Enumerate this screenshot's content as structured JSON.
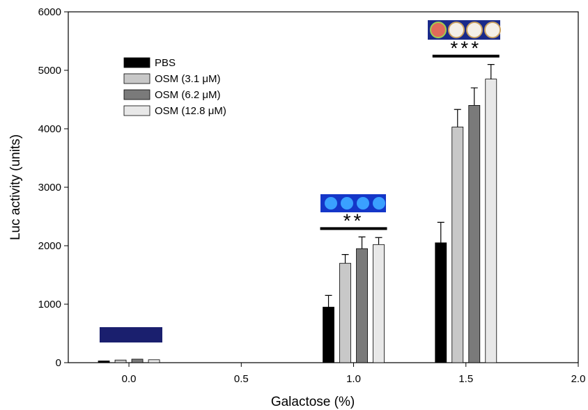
{
  "chart_data": {
    "type": "bar",
    "x_label": "Galactose (%)",
    "y_label": "Luc activity (units)",
    "x": [
      0.0,
      1.0,
      1.5
    ],
    "series": [
      {
        "name": "PBS",
        "color": "#000000",
        "values": [
          30,
          950,
          2050
        ],
        "errors": [
          0,
          200,
          350
        ]
      },
      {
        "name": "OSM (3.1 μM)",
        "color": "#c8c8c8",
        "values": [
          45,
          1700,
          4030
        ],
        "errors": [
          0,
          150,
          300
        ]
      },
      {
        "name": "OSM (6.2 μM)",
        "color": "#7a7a7a",
        "values": [
          60,
          1950,
          4400
        ],
        "errors": [
          0,
          200,
          300
        ]
      },
      {
        "name": "OSM (12.8 μM)",
        "color": "#e8e8e8",
        "values": [
          50,
          2020,
          4850
        ],
        "errors": [
          0,
          120,
          250
        ]
      }
    ],
    "xlim": [
      -0.27,
      2.0
    ],
    "ylim": [
      0,
      6000
    ],
    "xticks": [
      {
        "value": 0,
        "label": "0.0"
      },
      {
        "value": 0.5,
        "label": "0.5"
      },
      {
        "value": 1,
        "label": "1.0"
      },
      {
        "value": 1.5,
        "label": "1.5"
      },
      {
        "value": 2,
        "label": "2.0"
      }
    ],
    "yticks": [
      0,
      1000,
      2000,
      3000,
      4000,
      5000,
      6000
    ],
    "annotations": [
      {
        "text": "**",
        "x": 1.0
      },
      {
        "text": "***",
        "x": 1.5
      }
    ]
  }
}
